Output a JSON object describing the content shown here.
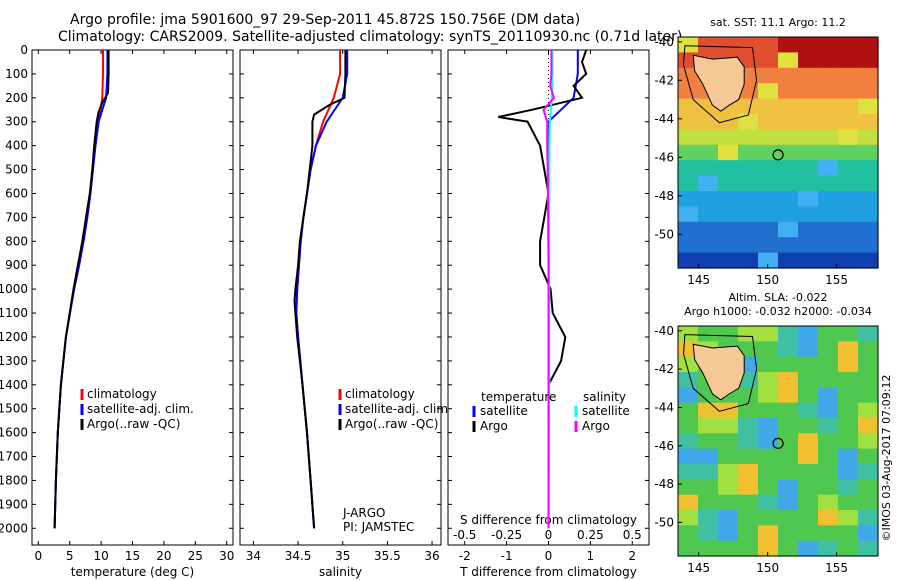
{
  "header": {
    "line1": "Argo profile: jma 5901600_97 29-Sep-2011 45.872S 150.756E (DM data)",
    "line2": "Climatology: CARS2009. Satellite-adjusted climatology: synTS_20110930.nc (0.71d later)"
  },
  "colors": {
    "climatology": "#ff0000",
    "satellite": "#0000ff",
    "argo": "#000000",
    "t_sat": "#0000ff",
    "s_sat": "#00ffff",
    "s_argo": "#ff00ff"
  },
  "chart_data": [
    {
      "type": "line",
      "id": "temperature",
      "xlabel": "temperature (deg C)",
      "xlim": [
        -1,
        31
      ],
      "ylim": [
        2070,
        0
      ],
      "xticks": [
        0,
        5,
        10,
        15,
        20,
        25,
        30
      ],
      "legend": [
        "climatology",
        "satellite-adj. clim.",
        "Argo(..raw -QC)"
      ],
      "series": [
        {
          "name": "climatology",
          "color": "#ff0000",
          "depth": [
            0,
            100,
            200,
            300,
            400,
            500,
            600,
            700,
            800,
            900,
            1000,
            1200,
            1400,
            1600,
            1800,
            2000
          ],
          "values": [
            10.3,
            10.3,
            10.2,
            9.6,
            9.1,
            8.7,
            8.3,
            7.8,
            7.2,
            6.5,
            5.7,
            4.4,
            3.6,
            3.1,
            2.8,
            2.6
          ]
        },
        {
          "name": "satellite-adj. clim.",
          "color": "#0000ff",
          "depth": [
            0,
            100,
            200,
            300,
            400,
            500,
            600,
            700,
            800,
            900,
            1000,
            1200,
            1400,
            1600,
            1800,
            2000
          ],
          "values": [
            11.0,
            11.0,
            10.8,
            9.6,
            9.1,
            8.7,
            8.3,
            7.8,
            7.2,
            6.5,
            5.7,
            4.4,
            3.6,
            3.1,
            2.8,
            2.6
          ]
        },
        {
          "name": "Argo(..raw -QC)",
          "color": "#000000",
          "depth": [
            0,
            100,
            180,
            220,
            260,
            300,
            400,
            500,
            600,
            700,
            800,
            900,
            1000,
            1100,
            1200,
            1300,
            1400,
            1600,
            1800,
            2000
          ],
          "values": [
            11.2,
            11.2,
            11.1,
            10.2,
            9.6,
            9.3,
            8.9,
            8.6,
            8.2,
            7.6,
            7.0,
            6.3,
            5.6,
            5.0,
            4.4,
            4.0,
            3.6,
            3.1,
            2.8,
            2.6
          ]
        }
      ]
    },
    {
      "type": "line",
      "id": "salinity",
      "xlabel": "salinity",
      "xlim": [
        33.85,
        36.1
      ],
      "ylim": [
        2070,
        0
      ],
      "xticks": [
        34,
        34.5,
        35,
        35.5,
        36
      ],
      "tick_labels": [
        "34",
        "34.5",
        "35",
        "35.5",
        "36"
      ],
      "legend": [
        "climatology",
        "satellite-adj. clim.",
        "Argo(..raw -QC)"
      ],
      "annotation": [
        "J-ARGO",
        "PI: JAMSTEC"
      ],
      "series": [
        {
          "name": "climatology",
          "color": "#ff0000",
          "depth": [
            0,
            100,
            200,
            300,
            400,
            500,
            600,
            700,
            800,
            900,
            1000,
            1100,
            1200,
            1400,
            1600,
            1800,
            2000
          ],
          "values": [
            34.97,
            34.97,
            34.9,
            34.78,
            34.7,
            34.64,
            34.6,
            34.56,
            34.53,
            34.51,
            34.49,
            34.48,
            34.5,
            34.55,
            34.6,
            34.64,
            34.68
          ]
        },
        {
          "name": "satellite-adj. clim.",
          "color": "#0000ff",
          "depth": [
            0,
            100,
            200,
            300,
            400,
            500,
            600,
            700,
            800,
            900,
            1000,
            1100,
            1200,
            1400,
            1600,
            1800,
            2000
          ],
          "values": [
            35.05,
            35.05,
            35.0,
            34.82,
            34.7,
            34.64,
            34.6,
            34.56,
            34.53,
            34.51,
            34.49,
            34.48,
            34.5,
            34.55,
            34.6,
            34.64,
            34.68
          ]
        },
        {
          "name": "Argo(..raw -QC)",
          "color": "#000000",
          "depth": [
            0,
            100,
            200,
            230,
            270,
            300,
            400,
            500,
            600,
            700,
            800,
            900,
            1000,
            1050,
            1100,
            1200,
            1300,
            1400,
            1600,
            1800,
            2000
          ],
          "values": [
            35.03,
            35.03,
            35.02,
            34.85,
            34.68,
            34.66,
            34.66,
            34.63,
            34.6,
            34.56,
            34.52,
            34.5,
            34.47,
            34.46,
            34.47,
            34.49,
            34.52,
            34.55,
            34.6,
            34.64,
            34.68
          ]
        }
      ]
    },
    {
      "type": "line",
      "id": "difference",
      "xlabel": "T difference from climatology",
      "xlabel_top": "S difference from climatology",
      "xlim": [
        -2.4,
        2.4
      ],
      "ylim": [
        2070,
        0
      ],
      "xticks": [
        -2,
        -1,
        0,
        1,
        2
      ],
      "top_ticks": [
        -0.5,
        -0.25,
        0,
        0.25,
        0.5
      ],
      "top_tick_labels": [
        "-0.5",
        "-0.25",
        "0",
        "0.25",
        "0.5"
      ],
      "legend_left": {
        "title": "temperature",
        "items": [
          "satellite",
          "Argo"
        ]
      },
      "legend_right": {
        "title": "salinity",
        "items": [
          "satellite",
          "Argo"
        ]
      },
      "series": [
        {
          "name": "temperature satellite",
          "color": "#0000ff",
          "depth": [
            0,
            100,
            200,
            300,
            400,
            600,
            800,
            1000,
            1200,
            1400,
            1700,
            2000
          ],
          "values": [
            0.7,
            0.7,
            0.6,
            0,
            0,
            0,
            0,
            0,
            0,
            0,
            0,
            0
          ]
        },
        {
          "name": "temperature Argo",
          "color": "#000000",
          "depth": [
            0,
            50,
            100,
            150,
            200,
            250,
            280,
            300,
            400,
            500,
            600,
            700,
            800,
            900,
            1000,
            1100,
            1200,
            1300,
            1400,
            1600,
            1800,
            2000
          ],
          "values": [
            0.9,
            0.8,
            0.9,
            0.6,
            0.8,
            -0.4,
            -1.2,
            -0.5,
            -0.2,
            -0.1,
            0,
            -0.1,
            -0.2,
            -0.2,
            0.05,
            0.1,
            0.4,
            0.3,
            0,
            0,
            0,
            0
          ]
        },
        {
          "name": "salinity satellite",
          "color": "#00ffff",
          "depth": [
            0,
            100,
            200,
            300,
            400,
            600,
            800,
            1000,
            1200,
            1400,
            1700,
            2000
          ],
          "values": [
            0.09,
            0.09,
            0.08,
            0.03,
            0.02,
            0.02,
            0.02,
            0.02,
            0.02,
            0.02,
            0.01,
            0.0
          ]
        },
        {
          "name": "salinity Argo",
          "color": "#ff00ff",
          "depth": [
            0,
            100,
            150,
            200,
            250,
            300,
            400,
            500,
            700,
            900,
            1100,
            1300,
            1500,
            1700,
            2000
          ],
          "values": [
            0.07,
            0.07,
            0.04,
            0.13,
            -0.12,
            -0.03,
            -0.03,
            -0.02,
            -0.01,
            0,
            0,
            0,
            0,
            0,
            0
          ]
        }
      ]
    }
  ],
  "maps": [
    {
      "title": "sat. SST: 11.1  Argo: 11.2",
      "lat_ticks": [
        -40,
        -42,
        -44,
        -46,
        -48,
        -50
      ],
      "lon_ticks": [
        145,
        150,
        155
      ]
    },
    {
      "title1": "Altim. SLA: -0.022",
      "title2": "Argo h1000: -0.032 h2000: -0.034",
      "lat_ticks": [
        -40,
        -42,
        -44,
        -46,
        -48,
        -50
      ],
      "lon_ticks": [
        145,
        150,
        155
      ]
    }
  ],
  "footer": {
    "credit": "©IMOS 03-Aug-2017 07:09:12"
  }
}
